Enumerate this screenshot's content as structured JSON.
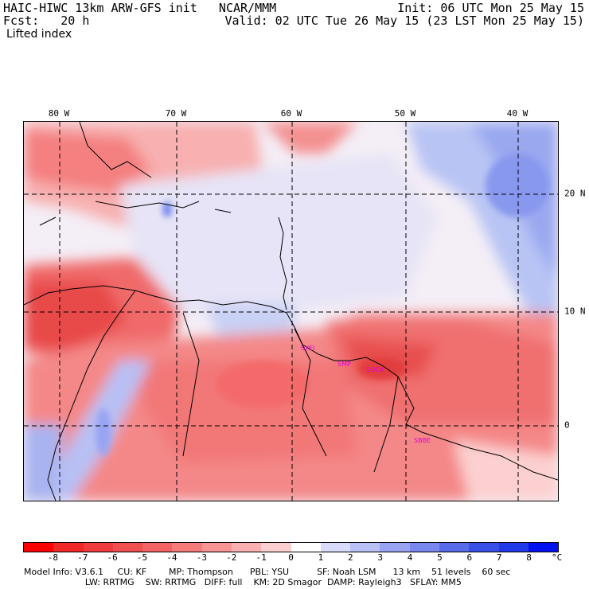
{
  "header": {
    "left_line1": "HAIC-HIWC 13km ARW-GFS init   NCAR/MMM",
    "left_line2": "Fcst:   20 h",
    "left_line3": "Lifted index",
    "right_line1": "Init: 06 UTC Mon 25 May 15",
    "right_line2": "Valid: 02 UTC Tue 26 May 15 (23 LST Mon 25 May 15)"
  },
  "map": {
    "lon_labels": [
      "80 W",
      "70 W",
      "60 W",
      "50 W",
      "40 W"
    ],
    "lat_labels": [
      "20 N",
      "10 N",
      "0"
    ],
    "cities": [
      "SYEI",
      "SMP",
      "SOCA",
      "SBBE"
    ],
    "colors": {
      "red_dark": "#e8404a",
      "red_mid": "#f47a7a",
      "red_light": "#f8a8a8",
      "pink": "#fcd0d0",
      "neutral": "#f4f0f8",
      "blue_light": "#d0d8f8",
      "blue_mid": "#a0b0f0",
      "blue_dark": "#7080e8"
    }
  },
  "colorbar": {
    "ticks": [
      "-8",
      "-7",
      "-6",
      "-5",
      "-4",
      "-3",
      "-2",
      "-1",
      "0",
      "1",
      "2",
      "3",
      "4",
      "5",
      "6",
      "7",
      "8"
    ],
    "unit": "°C",
    "colors": [
      "#ff0000",
      "#f02828",
      "#f03c3c",
      "#f05050",
      "#f46464",
      "#f67c7c",
      "#f89494",
      "#fab0b0",
      "#fcd0d0",
      "#ffffff",
      "#d8dcfa",
      "#b8c0f6",
      "#98a4f2",
      "#7888ee",
      "#586cea",
      "#3850e8",
      "#2038e8",
      "#0010ee"
    ]
  },
  "footer": {
    "line1": "Model Info: V3.6.1     CU: KF        MP: Thompson      PBL: YSU          SF: Noah LSM      13 km    51 levels    60 sec",
    "line2": "                      LW: RRTMG    SW: RRTMG   DIFF: full    KM: 2D Smagor  DAMP: Rayleigh3   SFLAY: MM5"
  }
}
